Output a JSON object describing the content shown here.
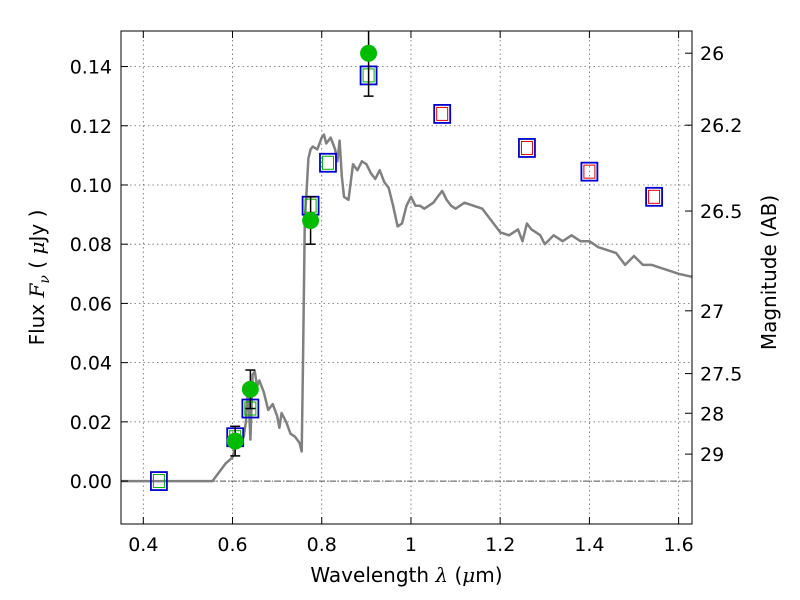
{
  "chart_data": {
    "type": "scatter",
    "xlabel": "Wavelength  λ (μm)",
    "ylabel": "Flux  F_ν  ( μJy )",
    "ylabel_parts": {
      "pre": "Flux  ",
      "var": "F",
      "sub": "ν",
      "post": "  ( ",
      "unit_mu": "μ",
      "unit": "Jy )"
    },
    "xlabel_parts": {
      "pre": "Wavelength  ",
      "var": "λ",
      "post": " (",
      "unit_mu": "μ",
      "unit": "m)"
    },
    "right_ylabel": "Magnitude (AB)",
    "xlim": [
      0.35,
      1.63
    ],
    "ylim": [
      -0.0145,
      0.152
    ],
    "grid": true,
    "x_ticks": [
      {
        "value": 0.4,
        "label": "0.4"
      },
      {
        "value": 0.6,
        "label": "0.6"
      },
      {
        "value": 0.8,
        "label": "0.8"
      },
      {
        "value": 1.0,
        "label": "1"
      },
      {
        "value": 1.2,
        "label": "1.2"
      },
      {
        "value": 1.4,
        "label": "1.4"
      },
      {
        "value": 1.6,
        "label": "1.6"
      }
    ],
    "y_ticks": [
      {
        "value": 0.0,
        "label": "0.00"
      },
      {
        "value": 0.02,
        "label": "0.02"
      },
      {
        "value": 0.04,
        "label": "0.04"
      },
      {
        "value": 0.06,
        "label": "0.06"
      },
      {
        "value": 0.08,
        "label": "0.08"
      },
      {
        "value": 0.1,
        "label": "0.10"
      },
      {
        "value": 0.12,
        "label": "0.12"
      },
      {
        "value": 0.14,
        "label": "0.14"
      }
    ],
    "right_ticks": [
      {
        "flux": 0.1445,
        "label": "26"
      },
      {
        "flux": 0.1202,
        "label": "26.2"
      },
      {
        "flux": 0.0912,
        "label": "26.5"
      },
      {
        "flux": 0.0575,
        "label": "27"
      },
      {
        "flux": 0.0363,
        "label": "27.5"
      },
      {
        "flux": 0.0229,
        "label": "28"
      },
      {
        "flux": 0.0091,
        "label": "29"
      }
    ],
    "colors": {
      "model": "#808080",
      "observed": "#00bb00",
      "model_box_outer": "#0000cc",
      "model_box_inner_opt": "#00aa00",
      "model_box_inner_ir": "#dd0000",
      "errorbar": "#000000",
      "zero_line": "#555555"
    },
    "series": [
      {
        "name": "model spectrum",
        "type": "line",
        "x": [
          0.35,
          0.4,
          0.45,
          0.5,
          0.555,
          0.57,
          0.585,
          0.6,
          0.605,
          0.615,
          0.625,
          0.63,
          0.635,
          0.64,
          0.645,
          0.65,
          0.655,
          0.66,
          0.67,
          0.68,
          0.69,
          0.7,
          0.705,
          0.71,
          0.72,
          0.73,
          0.74,
          0.75,
          0.755,
          0.758,
          0.762,
          0.766,
          0.77,
          0.775,
          0.78,
          0.79,
          0.8,
          0.805,
          0.81,
          0.82,
          0.83,
          0.835,
          0.84,
          0.845,
          0.85,
          0.86,
          0.87,
          0.88,
          0.89,
          0.9,
          0.91,
          0.92,
          0.93,
          0.94,
          0.95,
          0.96,
          0.97,
          0.98,
          0.99,
          1.0,
          1.01,
          1.02,
          1.03,
          1.04,
          1.05,
          1.06,
          1.07,
          1.08,
          1.09,
          1.1,
          1.12,
          1.14,
          1.16,
          1.18,
          1.2,
          1.22,
          1.24,
          1.25,
          1.26,
          1.27,
          1.28,
          1.29,
          1.3,
          1.32,
          1.34,
          1.36,
          1.38,
          1.4,
          1.42,
          1.44,
          1.46,
          1.48,
          1.5,
          1.52,
          1.54,
          1.56,
          1.58,
          1.6,
          1.63
        ],
        "y": [
          0,
          0,
          0,
          0,
          0,
          0.003,
          0.006,
          0.008,
          0.011,
          0.013,
          0.015,
          0.02,
          0.032,
          0.014,
          0.036,
          0.037,
          0.032,
          0.034,
          0.03,
          0.024,
          0.026,
          0.022,
          0.018,
          0.023,
          0.02,
          0.016,
          0.015,
          0.013,
          0.01,
          0.04,
          0.088,
          0.098,
          0.109,
          0.112,
          0.113,
          0.112,
          0.116,
          0.117,
          0.114,
          0.116,
          0.112,
          0.108,
          0.115,
          0.103,
          0.096,
          0.095,
          0.107,
          0.105,
          0.108,
          0.107,
          0.104,
          0.102,
          0.105,
          0.101,
          0.099,
          0.093,
          0.086,
          0.087,
          0.093,
          0.096,
          0.093,
          0.093,
          0.092,
          0.093,
          0.094,
          0.096,
          0.098,
          0.095,
          0.093,
          0.092,
          0.094,
          0.093,
          0.092,
          0.088,
          0.084,
          0.083,
          0.085,
          0.081,
          0.087,
          0.085,
          0.084,
          0.083,
          0.08,
          0.083,
          0.081,
          0.083,
          0.081,
          0.081,
          0.079,
          0.078,
          0.077,
          0.073,
          0.076,
          0.073,
          0.073,
          0.072,
          0.071,
          0.07,
          0.069
        ]
      },
      {
        "name": "model photometry",
        "type": "box",
        "x": [
          0.435,
          0.606,
          0.64,
          0.775,
          0.814,
          0.905,
          1.07,
          1.26,
          1.4,
          1.545
        ],
        "y": [
          0.0,
          0.0148,
          0.0245,
          0.093,
          0.1075,
          0.137,
          0.124,
          0.1125,
          0.1045,
          0.096
        ],
        "inner": [
          "opt",
          "opt",
          "opt",
          "opt",
          "opt",
          "opt",
          "ir",
          "ir",
          "ir",
          "ir"
        ]
      },
      {
        "name": "observed",
        "type": "points",
        "x": [
          0.606,
          0.64,
          0.775,
          0.905
        ],
        "y": [
          0.0135,
          0.031,
          0.088,
          0.1445
        ],
        "yerr": [
          0.005,
          0.0065,
          0.008,
          0.0145
        ]
      }
    ]
  }
}
